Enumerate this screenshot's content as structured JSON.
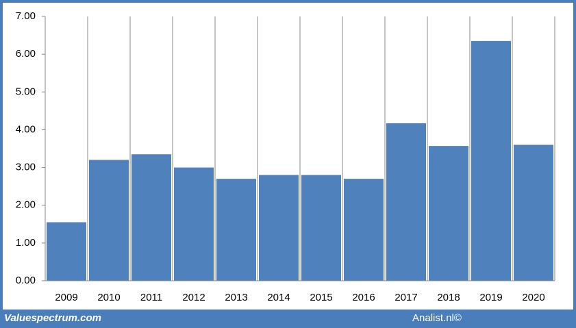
{
  "chart_data": {
    "type": "bar",
    "categories": [
      "2009",
      "2010",
      "2011",
      "2012",
      "2013",
      "2014",
      "2015",
      "2016",
      "2017",
      "2018",
      "2019",
      "2020"
    ],
    "values": [
      1.55,
      3.2,
      3.35,
      3.0,
      2.7,
      2.8,
      2.8,
      2.7,
      4.17,
      3.57,
      6.35,
      3.6
    ],
    "color": "#4f81bd",
    "ylim": [
      0,
      7
    ],
    "yticks": [
      {
        "value": 0,
        "label": "0.00"
      },
      {
        "value": 1,
        "label": "1.00"
      },
      {
        "value": 2,
        "label": "2.00"
      },
      {
        "value": 3,
        "label": "3.00"
      },
      {
        "value": 4,
        "label": "4.00"
      },
      {
        "value": 5,
        "label": "5.00"
      },
      {
        "value": 6,
        "label": "6.00"
      },
      {
        "value": 7,
        "label": "7.00"
      }
    ]
  },
  "footer": {
    "left": "Valuespectrum.com",
    "right": "Analist.nl©"
  }
}
